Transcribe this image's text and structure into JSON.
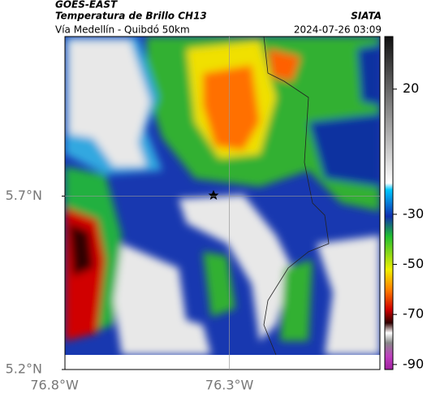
{
  "header": {
    "source": "GOES-EAST",
    "title": "Temperatura de Brillo CH13",
    "brand": "SIATA",
    "subtitle": "Vía Medellín - Quibdó 50km",
    "timestamp": "2024-07-26 03:09"
  },
  "map": {
    "lonlim": [
      -76.77,
      -75.87
    ],
    "latlim": [
      5.2,
      6.16
    ],
    "lat_ticks": [
      {
        "value": 5.7,
        "label": "5.7°N"
      },
      {
        "value": 5.2,
        "label": "5.2°N"
      }
    ],
    "lon_ticks": [
      {
        "value": -76.8,
        "label": "76.8°W"
      },
      {
        "value": -76.3,
        "label": "76.3°W"
      }
    ],
    "grid": true
  },
  "colorbar": {
    "clim": [
      -92,
      41
    ],
    "ticks": [
      20,
      -30,
      -50,
      -70,
      -90
    ]
  }
}
